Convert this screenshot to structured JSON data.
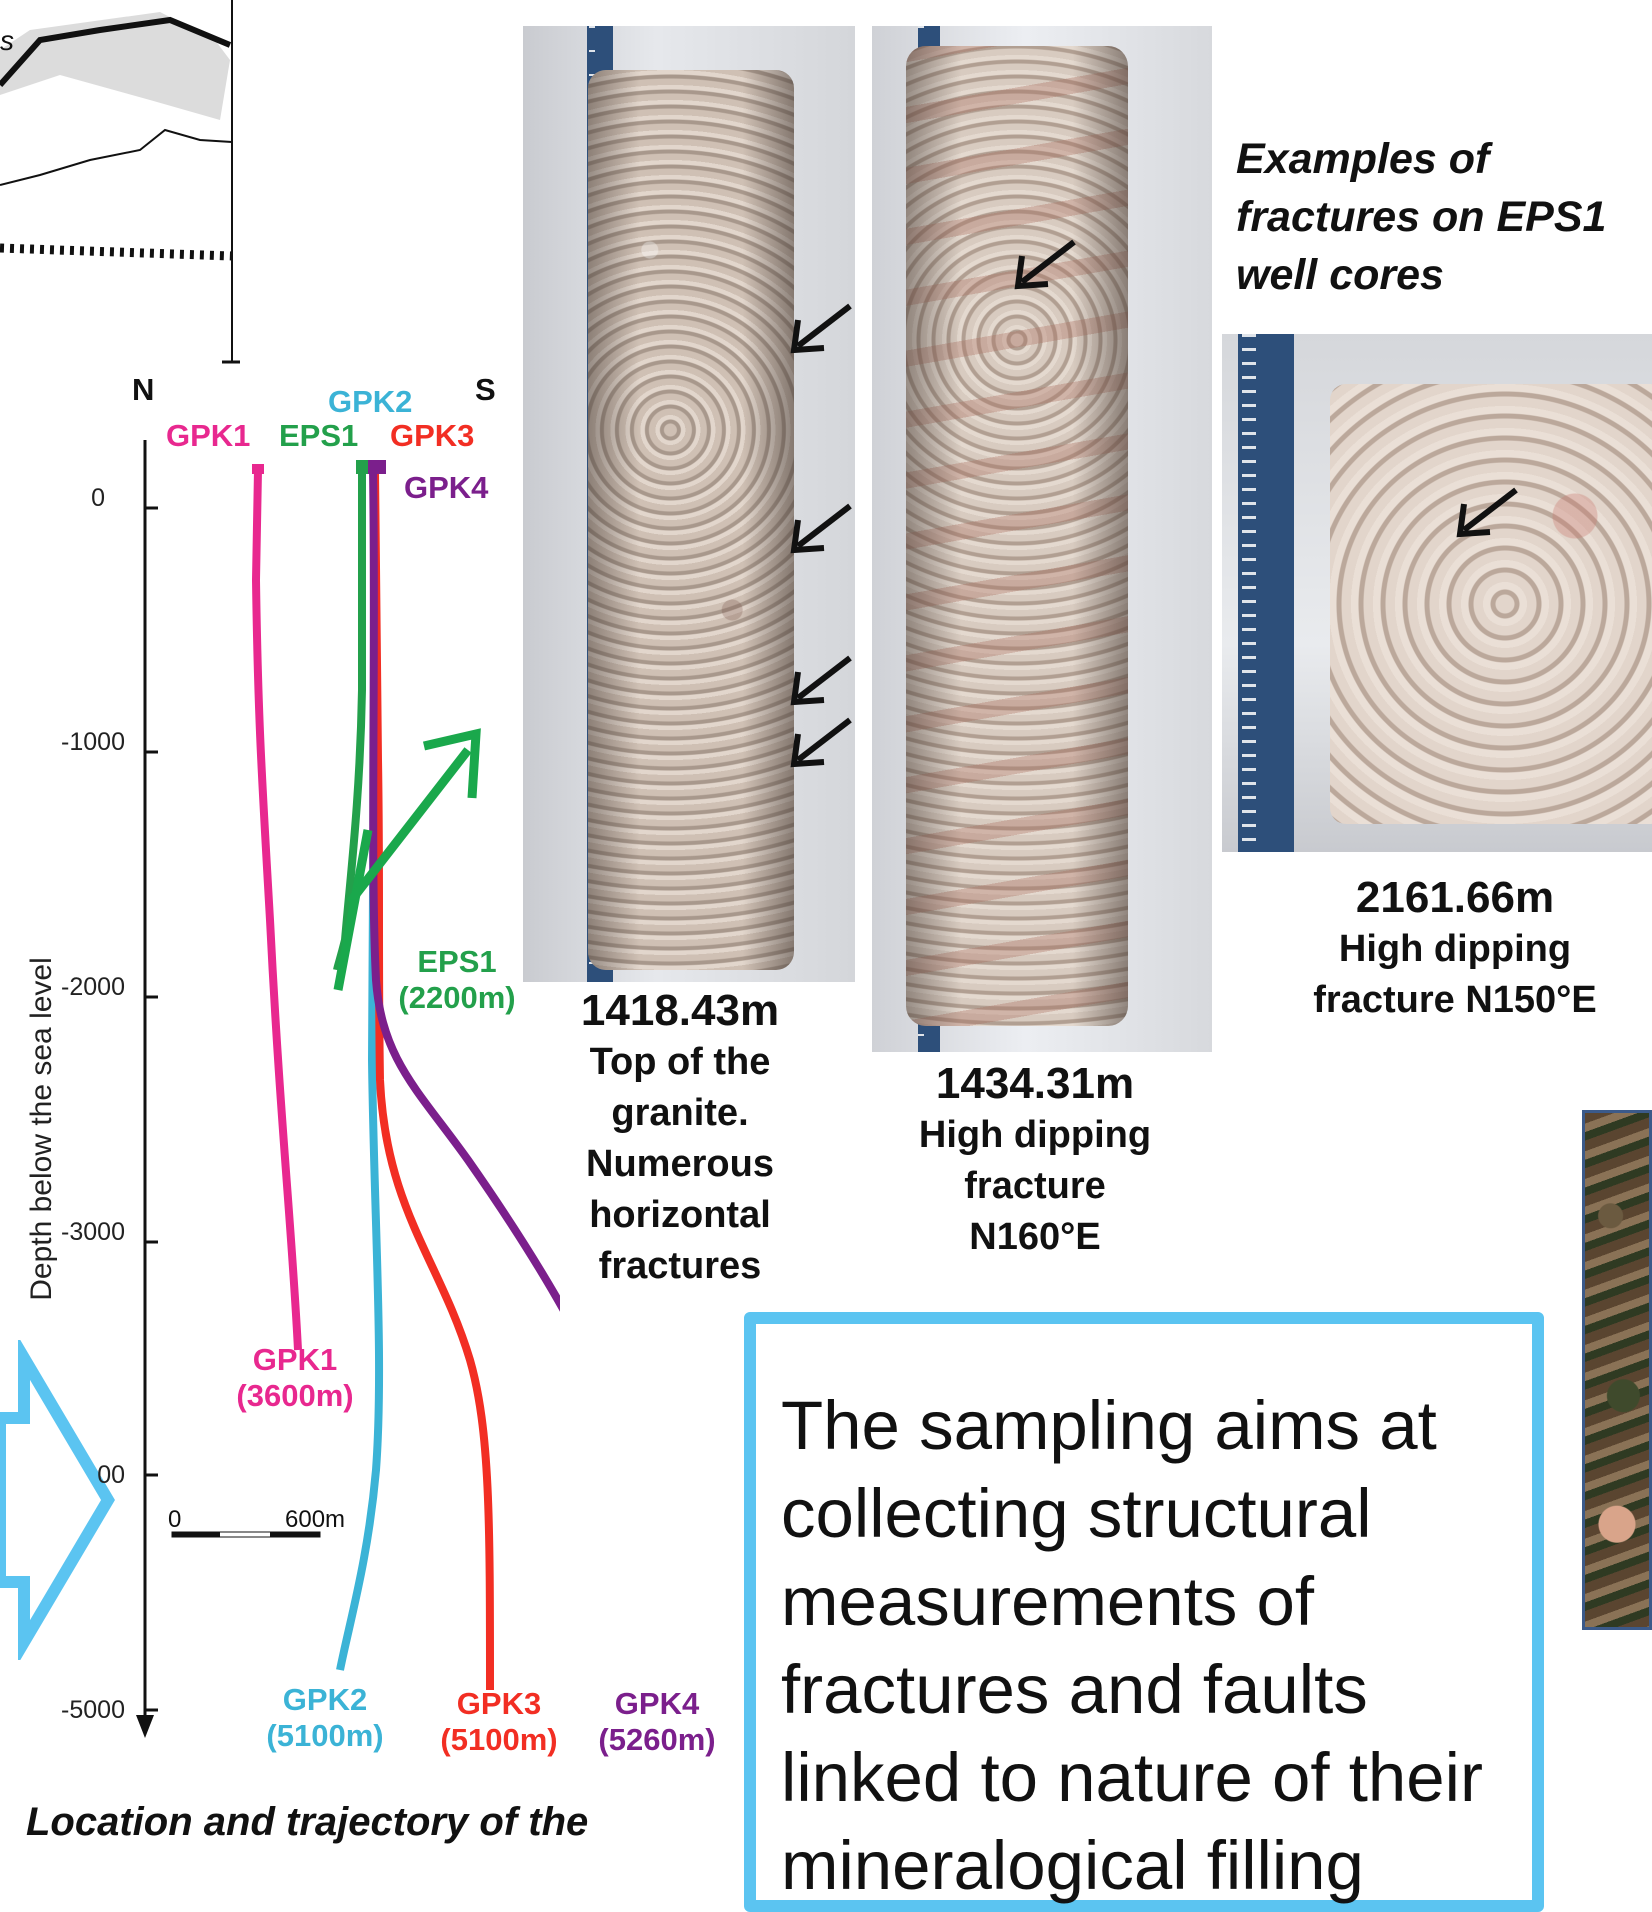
{
  "colors": {
    "gpk1": "#e8288f",
    "eps1": "#23a04b",
    "gpk2": "#3bb3d6",
    "gpk3": "#f22e23",
    "gpk4": "#7b1f8c",
    "box_border": "#5bc4f1",
    "arrow_green": "#1aa84c"
  },
  "section": {
    "compass_n": "N",
    "compass_s": "S",
    "top_labels": {
      "gpk1": "GPK1",
      "eps1": "EPS1",
      "gpk2": "GPK2",
      "gpk3": "GPK3",
      "gpk4": "GPK4"
    },
    "axis_label": "Depth below the sea level",
    "ticks": [
      "0",
      "-1000",
      "-2000",
      "-3000",
      "00",
      "-5000"
    ],
    "scale_start": "0",
    "scale_end": "600m",
    "bottom_labels": {
      "eps1_name": "EPS1",
      "eps1_depth": "(2200m)",
      "gpk1_name": "GPK1",
      "gpk1_depth": "(3600m)",
      "gpk2_name": "GPK2",
      "gpk2_depth": "(5100m)",
      "gpk3_name": "GPK3",
      "gpk3_depth": "(5100m)",
      "gpk4_name": "GPK4",
      "gpk4_depth": "(5260m)"
    },
    "caption": "Location and trajectory of the"
  },
  "cores": {
    "title": "Examples of fractures on EPS1 well cores",
    "core1": {
      "depth": "1418.43m",
      "lines": [
        "Top of the",
        "granite.",
        "Numerous",
        "horizontal",
        "fractures"
      ]
    },
    "core2": {
      "depth": "1434.31m",
      "lines": [
        "High dipping",
        "fracture",
        "N160°E"
      ]
    },
    "core3": {
      "depth": "2161.66m",
      "lines": [
        "High dipping",
        "fracture N150°E"
      ]
    }
  },
  "info_box": {
    "text": "The sampling aims at collecting structural measurements of fractures and faults linked to nature of their mineralogical filling"
  }
}
